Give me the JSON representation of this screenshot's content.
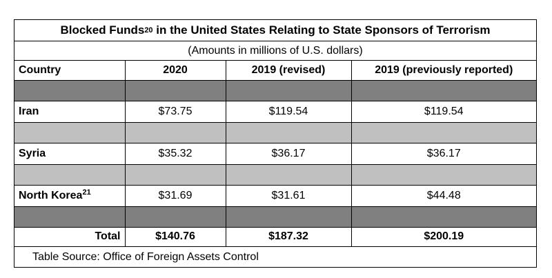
{
  "title": {
    "text": "Blocked Funds",
    "footnote": "20",
    "suffix": " in the United States Relating to State Sponsors of Terrorism"
  },
  "subtitle": "(Amounts in millions of U.S. dollars)",
  "columns": [
    "Country",
    "2020",
    "2019 (revised)",
    "2019 (previously reported)"
  ],
  "rows": [
    {
      "country": "Iran",
      "footnote": "",
      "v2020": "$73.75",
      "v2019r": "$119.54",
      "v2019p": "$119.54"
    },
    {
      "country": "Syria",
      "footnote": "",
      "v2020": "$35.32",
      "v2019r": "$36.17",
      "v2019p": "$36.17"
    },
    {
      "country": "North Korea",
      "footnote": "21",
      "v2020": "$31.69",
      "v2019r": "$31.61",
      "v2019p": "$44.48"
    }
  ],
  "total": {
    "label": "Total",
    "v2020": "$140.76",
    "v2019r": "$187.32",
    "v2019p": "$200.19"
  },
  "source": "Table Source: Office of Foreign Assets Control",
  "colors": {
    "separator_dark": "#808080",
    "separator_light": "#c0c0c0"
  }
}
